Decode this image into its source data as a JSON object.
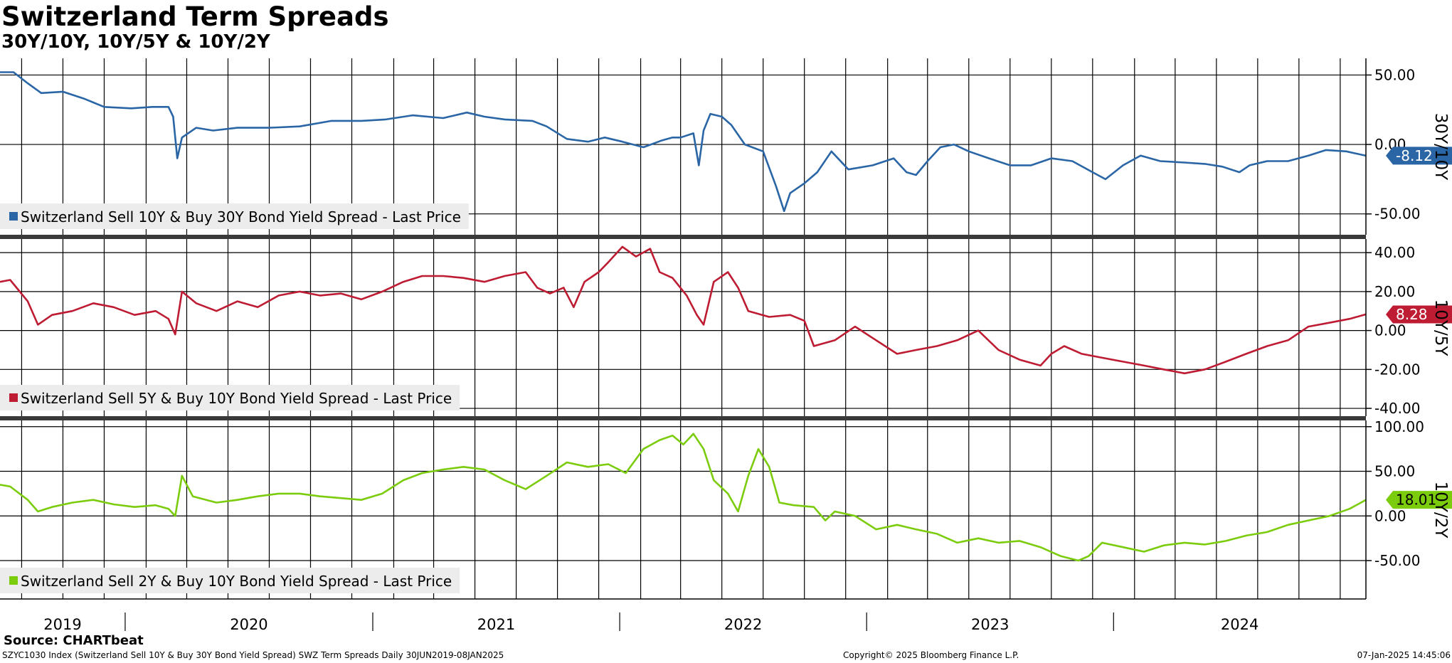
{
  "header": {
    "title": "Switzerland Term Spreads",
    "subtitle": "30Y/10Y, 10Y/5Y & 10Y/2Y"
  },
  "footer": {
    "source": "Source: CHARTbeat",
    "description": "SZYC1030 Index (Switzerland Sell 10Y & Buy 30Y Bond Yield Spread) SWZ Term Spreads  Daily 30JUN2019-08JAN2025",
    "copyright": "Copyright© 2025 Bloomberg Finance L.P.",
    "timestamp": "07-Jan-2025 14:45:06"
  },
  "chart_data": {
    "type": "line",
    "x_range": [
      "2019-06-30",
      "2025-01-08"
    ],
    "x_axis_labels": [
      "2019",
      "2020",
      "2021",
      "2022",
      "2023",
      "2024"
    ],
    "grid": true,
    "legend_placement": "bottom-left of each panel",
    "panels": [
      {
        "panel_label": "30Y/10Y",
        "series_name": "Switzerland Sell 10Y & Buy 30Y Bond Yield Spread - Last Price",
        "color": "#2a66a6",
        "ylim": [
          -65,
          62
        ],
        "ticks": [
          50,
          0,
          -50
        ],
        "tick_labels": [
          "50.00",
          "0.00",
          "-50.00"
        ],
        "last_value": -8.12,
        "last_label": "-8.12",
        "points": [
          [
            "2019-06-30",
            52
          ],
          [
            "2019-07-20",
            52
          ],
          [
            "2019-08-10",
            44
          ],
          [
            "2019-08-30",
            37
          ],
          [
            "2019-10-01",
            38
          ],
          [
            "2019-11-01",
            33
          ],
          [
            "2019-12-01",
            27
          ],
          [
            "2020-01-10",
            26
          ],
          [
            "2020-02-10",
            27
          ],
          [
            "2020-03-05",
            27
          ],
          [
            "2020-03-12",
            20
          ],
          [
            "2020-03-18",
            -10
          ],
          [
            "2020-03-25",
            5
          ],
          [
            "2020-04-15",
            12
          ],
          [
            "2020-05-10",
            10
          ],
          [
            "2020-06-15",
            12
          ],
          [
            "2020-08-01",
            12
          ],
          [
            "2020-09-15",
            13
          ],
          [
            "2020-11-01",
            17
          ],
          [
            "2020-12-15",
            17
          ],
          [
            "2021-01-20",
            18
          ],
          [
            "2021-03-01",
            21
          ],
          [
            "2021-04-15",
            19
          ],
          [
            "2021-05-20",
            23
          ],
          [
            "2021-06-15",
            20
          ],
          [
            "2021-07-15",
            18
          ],
          [
            "2021-08-25",
            17
          ],
          [
            "2021-09-15",
            13
          ],
          [
            "2021-10-15",
            4
          ],
          [
            "2021-11-15",
            2
          ],
          [
            "2021-12-10",
            5
          ],
          [
            "2022-01-05",
            2
          ],
          [
            "2022-02-05",
            -2
          ],
          [
            "2022-03-05",
            3
          ],
          [
            "2022-03-20",
            5
          ],
          [
            "2022-04-01",
            5
          ],
          [
            "2022-04-20",
            8
          ],
          [
            "2022-04-28",
            -15
          ],
          [
            "2022-05-05",
            10
          ],
          [
            "2022-05-15",
            22
          ],
          [
            "2022-06-01",
            20
          ],
          [
            "2022-06-15",
            14
          ],
          [
            "2022-07-05",
            0
          ],
          [
            "2022-08-01",
            -5
          ],
          [
            "2022-08-20",
            -30
          ],
          [
            "2022-09-01",
            -48
          ],
          [
            "2022-09-10",
            -35
          ],
          [
            "2022-10-01",
            -28
          ],
          [
            "2022-10-20",
            -20
          ],
          [
            "2022-11-10",
            -5
          ],
          [
            "2022-12-05",
            -18
          ],
          [
            "2023-01-10",
            -15
          ],
          [
            "2023-02-10",
            -10
          ],
          [
            "2023-03-01",
            -20
          ],
          [
            "2023-03-15",
            -22
          ],
          [
            "2023-04-01",
            -12
          ],
          [
            "2023-04-20",
            -2
          ],
          [
            "2023-05-10",
            0
          ],
          [
            "2023-06-01",
            -5
          ],
          [
            "2023-07-01",
            -10
          ],
          [
            "2023-08-01",
            -15
          ],
          [
            "2023-09-01",
            -15
          ],
          [
            "2023-10-01",
            -10
          ],
          [
            "2023-11-01",
            -12
          ],
          [
            "2023-12-01",
            -20
          ],
          [
            "2023-12-20",
            -25
          ],
          [
            "2024-01-15",
            -15
          ],
          [
            "2024-02-10",
            -8
          ],
          [
            "2024-03-10",
            -12
          ],
          [
            "2024-04-15",
            -13
          ],
          [
            "2024-05-15",
            -14
          ],
          [
            "2024-06-10",
            -16
          ],
          [
            "2024-07-05",
            -20
          ],
          [
            "2024-07-20",
            -15
          ],
          [
            "2024-08-15",
            -12
          ],
          [
            "2024-09-15",
            -12
          ],
          [
            "2024-10-15",
            -8
          ],
          [
            "2024-11-10",
            -4
          ],
          [
            "2024-12-10",
            -5
          ],
          [
            "2025-01-08",
            -8.12
          ]
        ]
      },
      {
        "panel_label": "10Y/5Y",
        "series_name": "Switzerland Sell 5Y & Buy 10Y Bond Yield Spread - Last Price",
        "color": "#be1c33",
        "ylim": [
          -44,
          47
        ],
        "ticks": [
          40,
          20,
          0,
          -20,
          -40
        ],
        "tick_labels": [
          "40.00",
          "20.00",
          "0.00",
          "-20.00",
          "-40.00"
        ],
        "last_value": 8.28,
        "last_label": "8.28",
        "points": [
          [
            "2019-06-30",
            25
          ],
          [
            "2019-07-15",
            26
          ],
          [
            "2019-08-10",
            15
          ],
          [
            "2019-08-25",
            3
          ],
          [
            "2019-09-15",
            8
          ],
          [
            "2019-10-15",
            10
          ],
          [
            "2019-11-15",
            14
          ],
          [
            "2019-12-15",
            12
          ],
          [
            "2020-01-15",
            8
          ],
          [
            "2020-02-15",
            10
          ],
          [
            "2020-03-05",
            6
          ],
          [
            "2020-03-15",
            -2
          ],
          [
            "2020-03-25",
            20
          ],
          [
            "2020-04-15",
            14
          ],
          [
            "2020-05-15",
            10
          ],
          [
            "2020-06-15",
            15
          ],
          [
            "2020-07-15",
            12
          ],
          [
            "2020-08-15",
            18
          ],
          [
            "2020-09-15",
            20
          ],
          [
            "2020-10-15",
            18
          ],
          [
            "2020-11-15",
            19
          ],
          [
            "2020-12-15",
            16
          ],
          [
            "2021-01-15",
            20
          ],
          [
            "2021-02-15",
            25
          ],
          [
            "2021-03-15",
            28
          ],
          [
            "2021-04-15",
            28
          ],
          [
            "2021-05-15",
            27
          ],
          [
            "2021-06-15",
            25
          ],
          [
            "2021-07-15",
            28
          ],
          [
            "2021-08-15",
            30
          ],
          [
            "2021-09-01",
            22
          ],
          [
            "2021-09-20",
            19
          ],
          [
            "2021-10-10",
            22
          ],
          [
            "2021-10-25",
            12
          ],
          [
            "2021-11-10",
            25
          ],
          [
            "2021-12-01",
            30
          ],
          [
            "2021-12-15",
            35
          ],
          [
            "2022-01-05",
            43
          ],
          [
            "2022-01-25",
            38
          ],
          [
            "2022-02-15",
            42
          ],
          [
            "2022-03-01",
            30
          ],
          [
            "2022-03-20",
            27
          ],
          [
            "2022-04-10",
            18
          ],
          [
            "2022-04-25",
            8
          ],
          [
            "2022-05-05",
            3
          ],
          [
            "2022-05-20",
            25
          ],
          [
            "2022-06-10",
            30
          ],
          [
            "2022-06-25",
            22
          ],
          [
            "2022-07-10",
            10
          ],
          [
            "2022-08-10",
            7
          ],
          [
            "2022-09-10",
            8
          ],
          [
            "2022-10-01",
            5
          ],
          [
            "2022-10-15",
            -8
          ],
          [
            "2022-11-15",
            -5
          ],
          [
            "2022-12-15",
            2
          ],
          [
            "2023-01-15",
            -5
          ],
          [
            "2023-02-15",
            -12
          ],
          [
            "2023-03-15",
            -10
          ],
          [
            "2023-04-15",
            -8
          ],
          [
            "2023-05-15",
            -5
          ],
          [
            "2023-06-15",
            0
          ],
          [
            "2023-07-15",
            -10
          ],
          [
            "2023-08-15",
            -15
          ],
          [
            "2023-09-15",
            -18
          ],
          [
            "2023-10-01",
            -12
          ],
          [
            "2023-10-20",
            -8
          ],
          [
            "2023-11-15",
            -12
          ],
          [
            "2023-12-15",
            -14
          ],
          [
            "2024-01-15",
            -16
          ],
          [
            "2024-02-15",
            -18
          ],
          [
            "2024-03-15",
            -20
          ],
          [
            "2024-04-15",
            -22
          ],
          [
            "2024-05-15",
            -20
          ],
          [
            "2024-06-15",
            -16
          ],
          [
            "2024-07-15",
            -12
          ],
          [
            "2024-08-15",
            -8
          ],
          [
            "2024-09-15",
            -5
          ],
          [
            "2024-10-15",
            2
          ],
          [
            "2024-11-15",
            4
          ],
          [
            "2024-12-15",
            6
          ],
          [
            "2025-01-08",
            8.28
          ]
        ]
      },
      {
        "panel_label": "10Y/2Y",
        "series_name": "Switzerland Sell 2Y & Buy 10Y Bond Yield Spread - Last Price",
        "color": "#7ccc0e",
        "ylim": [
          -93,
          107
        ],
        "ticks": [
          100,
          50,
          0,
          -50
        ],
        "tick_labels": [
          "100.00",
          "50.00",
          "0.00",
          "-50.00"
        ],
        "last_value": 18.01,
        "last_label": "18.01",
        "points": [
          [
            "2019-06-30",
            35
          ],
          [
            "2019-07-15",
            33
          ],
          [
            "2019-08-10",
            18
          ],
          [
            "2019-08-25",
            5
          ],
          [
            "2019-09-15",
            10
          ],
          [
            "2019-10-15",
            15
          ],
          [
            "2019-11-15",
            18
          ],
          [
            "2019-12-15",
            13
          ],
          [
            "2020-01-15",
            10
          ],
          [
            "2020-02-15",
            12
          ],
          [
            "2020-03-05",
            8
          ],
          [
            "2020-03-15",
            0
          ],
          [
            "2020-03-25",
            45
          ],
          [
            "2020-04-10",
            22
          ],
          [
            "2020-05-15",
            15
          ],
          [
            "2020-06-15",
            18
          ],
          [
            "2020-07-15",
            22
          ],
          [
            "2020-08-15",
            25
          ],
          [
            "2020-09-15",
            25
          ],
          [
            "2020-10-15",
            22
          ],
          [
            "2020-11-15",
            20
          ],
          [
            "2020-12-15",
            18
          ],
          [
            "2021-01-15",
            25
          ],
          [
            "2021-02-15",
            40
          ],
          [
            "2021-03-15",
            48
          ],
          [
            "2021-04-15",
            52
          ],
          [
            "2021-05-15",
            55
          ],
          [
            "2021-06-15",
            52
          ],
          [
            "2021-07-15",
            40
          ],
          [
            "2021-08-15",
            30
          ],
          [
            "2021-09-15",
            45
          ],
          [
            "2021-10-15",
            60
          ],
          [
            "2021-11-15",
            55
          ],
          [
            "2021-12-15",
            58
          ],
          [
            "2022-01-10",
            48
          ],
          [
            "2022-02-05",
            75
          ],
          [
            "2022-03-01",
            85
          ],
          [
            "2022-03-20",
            90
          ],
          [
            "2022-04-05",
            80
          ],
          [
            "2022-04-20",
            92
          ],
          [
            "2022-05-05",
            75
          ],
          [
            "2022-05-20",
            40
          ],
          [
            "2022-06-10",
            25
          ],
          [
            "2022-06-25",
            5
          ],
          [
            "2022-07-10",
            45
          ],
          [
            "2022-07-25",
            75
          ],
          [
            "2022-08-10",
            55
          ],
          [
            "2022-08-25",
            15
          ],
          [
            "2022-09-15",
            12
          ],
          [
            "2022-10-15",
            10
          ],
          [
            "2022-11-01",
            -5
          ],
          [
            "2022-11-15",
            5
          ],
          [
            "2022-12-15",
            0
          ],
          [
            "2023-01-15",
            -15
          ],
          [
            "2023-02-15",
            -10
          ],
          [
            "2023-03-15",
            -15
          ],
          [
            "2023-04-15",
            -20
          ],
          [
            "2023-05-15",
            -30
          ],
          [
            "2023-06-15",
            -25
          ],
          [
            "2023-07-15",
            -30
          ],
          [
            "2023-08-15",
            -28
          ],
          [
            "2023-09-15",
            -35
          ],
          [
            "2023-10-15",
            -45
          ],
          [
            "2023-11-10",
            -50
          ],
          [
            "2023-11-25",
            -45
          ],
          [
            "2023-12-15",
            -30
          ],
          [
            "2024-01-15",
            -35
          ],
          [
            "2024-02-15",
            -40
          ],
          [
            "2024-03-15",
            -33
          ],
          [
            "2024-04-15",
            -30
          ],
          [
            "2024-05-15",
            -32
          ],
          [
            "2024-06-15",
            -28
          ],
          [
            "2024-07-15",
            -22
          ],
          [
            "2024-08-15",
            -18
          ],
          [
            "2024-09-15",
            -10
          ],
          [
            "2024-10-15",
            -5
          ],
          [
            "2024-11-15",
            0
          ],
          [
            "2024-12-15",
            8
          ],
          [
            "2025-01-08",
            18.01
          ]
        ]
      }
    ]
  }
}
